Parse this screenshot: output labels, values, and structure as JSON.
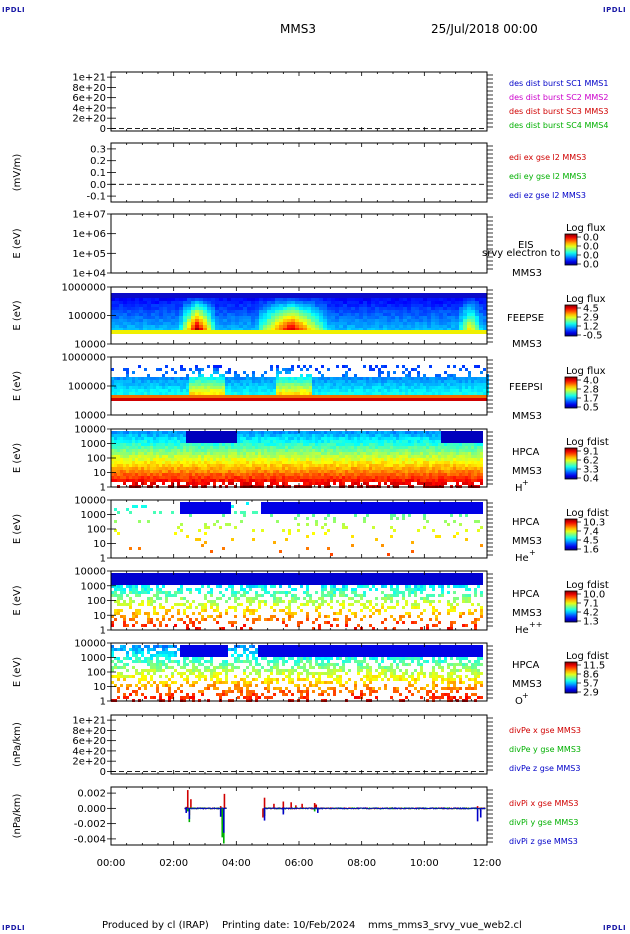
{
  "header": {
    "spacecraft": "MMS3",
    "date": "25/Jul/2018 00:00",
    "logo": "IPDLI"
  },
  "footer": {
    "credit": "Produced by cl (IRAP)",
    "printing": "Printing date: 10/Feb/2024",
    "script": "mms_mms3_srvy_vue_web2.cl"
  },
  "chart_data": [
    {
      "type": "line",
      "title": "",
      "ylabel": "",
      "ylim": [
        -5e+19,
        1.1e+21
      ],
      "ytick_labels": [
        "1e+21",
        "8e+20",
        "6e+20",
        "4e+20",
        "2e+20",
        "0"
      ],
      "yticks": [
        1e+21,
        8e+20,
        6e+20,
        4e+20,
        2e+20,
        0
      ],
      "zero_line": true,
      "series": [
        {
          "name": "des dist burst SC1 MMS1",
          "color": "#0000c8",
          "values": []
        },
        {
          "name": "des dist burst SC2 MMS2",
          "color": "#cc00cc",
          "values": []
        },
        {
          "name": "des dist burst SC3 MMS3",
          "color": "#d00000",
          "values": []
        },
        {
          "name": "des dist burst SC4 MMS4",
          "color": "#00b000",
          "values": []
        }
      ]
    },
    {
      "type": "line",
      "title": "",
      "ylabel": "(mV/m)",
      "ylim": [
        -0.15,
        0.35
      ],
      "ytick_labels": [
        "0.3",
        "0.2",
        "0.1",
        "0.0",
        "-0.1"
      ],
      "yticks": [
        0.3,
        0.2,
        0.1,
        0.0,
        -0.1
      ],
      "zero_line": true,
      "series": [
        {
          "name": "edi ex gse l2 MMS3",
          "color": "#d00000",
          "values": []
        },
        {
          "name": "edi ey gse l2 MMS3",
          "color": "#00b000",
          "values": []
        },
        {
          "name": "edi ez gse l2 MMS3",
          "color": "#0000c8",
          "values": []
        }
      ]
    },
    {
      "type": "heatmap",
      "ylabel": "E (eV)",
      "log": true,
      "ytick_labels": [
        "1e+07",
        "1e+06",
        "1e+05",
        "1e+04"
      ],
      "yticks": [
        10000000.0,
        1000000.0,
        100000.0,
        10000.0
      ],
      "instrument": [
        "EIS",
        "MMS3"
      ],
      "note": "srvy electron to",
      "colorbar": {
        "title": "Log flux",
        "ticks": [
          "0.0",
          "0.0",
          "0.0",
          "0.0"
        ]
      },
      "values": []
    },
    {
      "type": "heatmap",
      "ylabel": "E (eV)",
      "log": true,
      "ytick_labels": [
        "1000000",
        "100000",
        "10000"
      ],
      "yticks": [
        1000000.0,
        100000.0,
        10000.0
      ],
      "instrument": [
        "FEEPSE",
        "MMS3"
      ],
      "colorbar": {
        "title": "Log flux",
        "ticks": [
          "4.5",
          "2.9",
          "1.2",
          "-0.5"
        ]
      }
    },
    {
      "type": "heatmap",
      "ylabel": "E (eV)",
      "log": true,
      "ytick_labels": [
        "1000000",
        "100000",
        "10000"
      ],
      "yticks": [
        1000000.0,
        100000.0,
        10000.0
      ],
      "instrument": [
        "FEEPSI",
        "MMS3"
      ],
      "colorbar": {
        "title": "Log flux",
        "ticks": [
          "4.0",
          "2.8",
          "1.7",
          "0.5"
        ]
      }
    },
    {
      "type": "heatmap",
      "ylabel": "E (eV)",
      "log": true,
      "ytick_labels": [
        "10000",
        "1000",
        "100",
        "10",
        "1"
      ],
      "yticks": [
        10000,
        1000,
        100,
        10,
        1
      ],
      "instrument": [
        "HPCA",
        "MMS3"
      ],
      "species": "H",
      "charge": "+",
      "colorbar": {
        "title": "Log fdist",
        "ticks": [
          "9.1",
          "6.2",
          "3.3",
          "0.4"
        ]
      }
    },
    {
      "type": "heatmap",
      "ylabel": "E (eV)",
      "log": true,
      "ytick_labels": [
        "10000",
        "1000",
        "100",
        "10",
        "1"
      ],
      "yticks": [
        10000,
        1000,
        100,
        10,
        1
      ],
      "instrument": [
        "HPCA",
        "MMS3"
      ],
      "species": "He",
      "charge": "+",
      "colorbar": {
        "title": "Log fdist",
        "ticks": [
          "10.3",
          "7.4",
          "4.5",
          "1.6"
        ]
      }
    },
    {
      "type": "heatmap",
      "ylabel": "E (eV)",
      "log": true,
      "ytick_labels": [
        "10000",
        "1000",
        "100",
        "10",
        "1"
      ],
      "yticks": [
        10000,
        1000,
        100,
        10,
        1
      ],
      "instrument": [
        "HPCA",
        "MMS3"
      ],
      "species": "He",
      "charge": "++",
      "colorbar": {
        "title": "Log fdist",
        "ticks": [
          "10.0",
          "7.1",
          "4.2",
          "1.3"
        ]
      }
    },
    {
      "type": "heatmap",
      "ylabel": "E (eV)",
      "log": true,
      "ytick_labels": [
        "10000",
        "1000",
        "100",
        "10",
        "1"
      ],
      "yticks": [
        10000,
        1000,
        100,
        10,
        1
      ],
      "instrument": [
        "HPCA",
        "MMS3"
      ],
      "species": "O",
      "charge": "+",
      "colorbar": {
        "title": "Log fdist",
        "ticks": [
          "11.5",
          "8.6",
          "5.7",
          "2.9"
        ]
      }
    },
    {
      "type": "line",
      "ylabel": "(nPa/km)",
      "ylim": [
        -5e+19,
        1.1e+21
      ],
      "ytick_labels": [
        "1e+21",
        "8e+20",
        "6e+20",
        "4e+20",
        "2e+20",
        "0"
      ],
      "yticks": [
        1e+21,
        8e+20,
        6e+20,
        4e+20,
        2e+20,
        0
      ],
      "zero_line": true,
      "series": [
        {
          "name": "divPe x gse MMS3",
          "color": "#d00000",
          "values": []
        },
        {
          "name": "divPe y gse MMS3",
          "color": "#00b000",
          "values": []
        },
        {
          "name": "divPe z gse MMS3",
          "color": "#0000c8",
          "values": []
        }
      ]
    },
    {
      "type": "line",
      "ylabel": "(nPa/km)",
      "ylim": [
        -0.0048,
        0.0028
      ],
      "ytick_labels": [
        "0.002",
        "0.000",
        "-0.002",
        "-0.004"
      ],
      "yticks": [
        0.002,
        0.0,
        -0.002,
        -0.004
      ],
      "x_unit": "hours",
      "series": [
        {
          "name": "divPi x gse MMS3",
          "color": "#d00000",
          "x": [
            2.4,
            2.45,
            2.5,
            2.55,
            3.5,
            3.55,
            3.62,
            4.85,
            4.9,
            5.2,
            5.5,
            5.75,
            5.9,
            6.1,
            6.5,
            6.55,
            11.7,
            11.8
          ],
          "values": [
            0.0002,
            0.0024,
            -0.0009,
            0.0012,
            0.0003,
            -0.0021,
            0.0019,
            -0.0012,
            0.0014,
            0.0006,
            0.0009,
            0.0008,
            0.0004,
            0.0006,
            0.0007,
            0.0005,
            0.0003,
            -0.0004
          ]
        },
        {
          "name": "divPi y gse MMS3",
          "color": "#00b000",
          "x": [
            2.45,
            2.5,
            3.55,
            3.6,
            4.9,
            5.5,
            6.5,
            11.8
          ],
          "values": [
            -0.0004,
            -0.0018,
            -0.0038,
            -0.0046,
            -0.001,
            -0.0006,
            -0.0004,
            -0.0003
          ]
        },
        {
          "name": "divPi z gse MMS3",
          "color": "#0000c8",
          "x": [
            2.4,
            2.5,
            3.5,
            3.6,
            4.9,
            5.5,
            6.6,
            11.7,
            11.8
          ],
          "values": [
            -0.0006,
            -0.0014,
            -0.0011,
            -0.0032,
            -0.0016,
            -0.0008,
            -0.0006,
            -0.0017,
            -0.0012
          ]
        }
      ]
    }
  ],
  "time_axis": {
    "ticks": [
      "00:00",
      "02:00",
      "04:00",
      "06:00",
      "08:00",
      "10:00",
      "12:00"
    ],
    "range_hours": [
      0,
      12
    ]
  }
}
